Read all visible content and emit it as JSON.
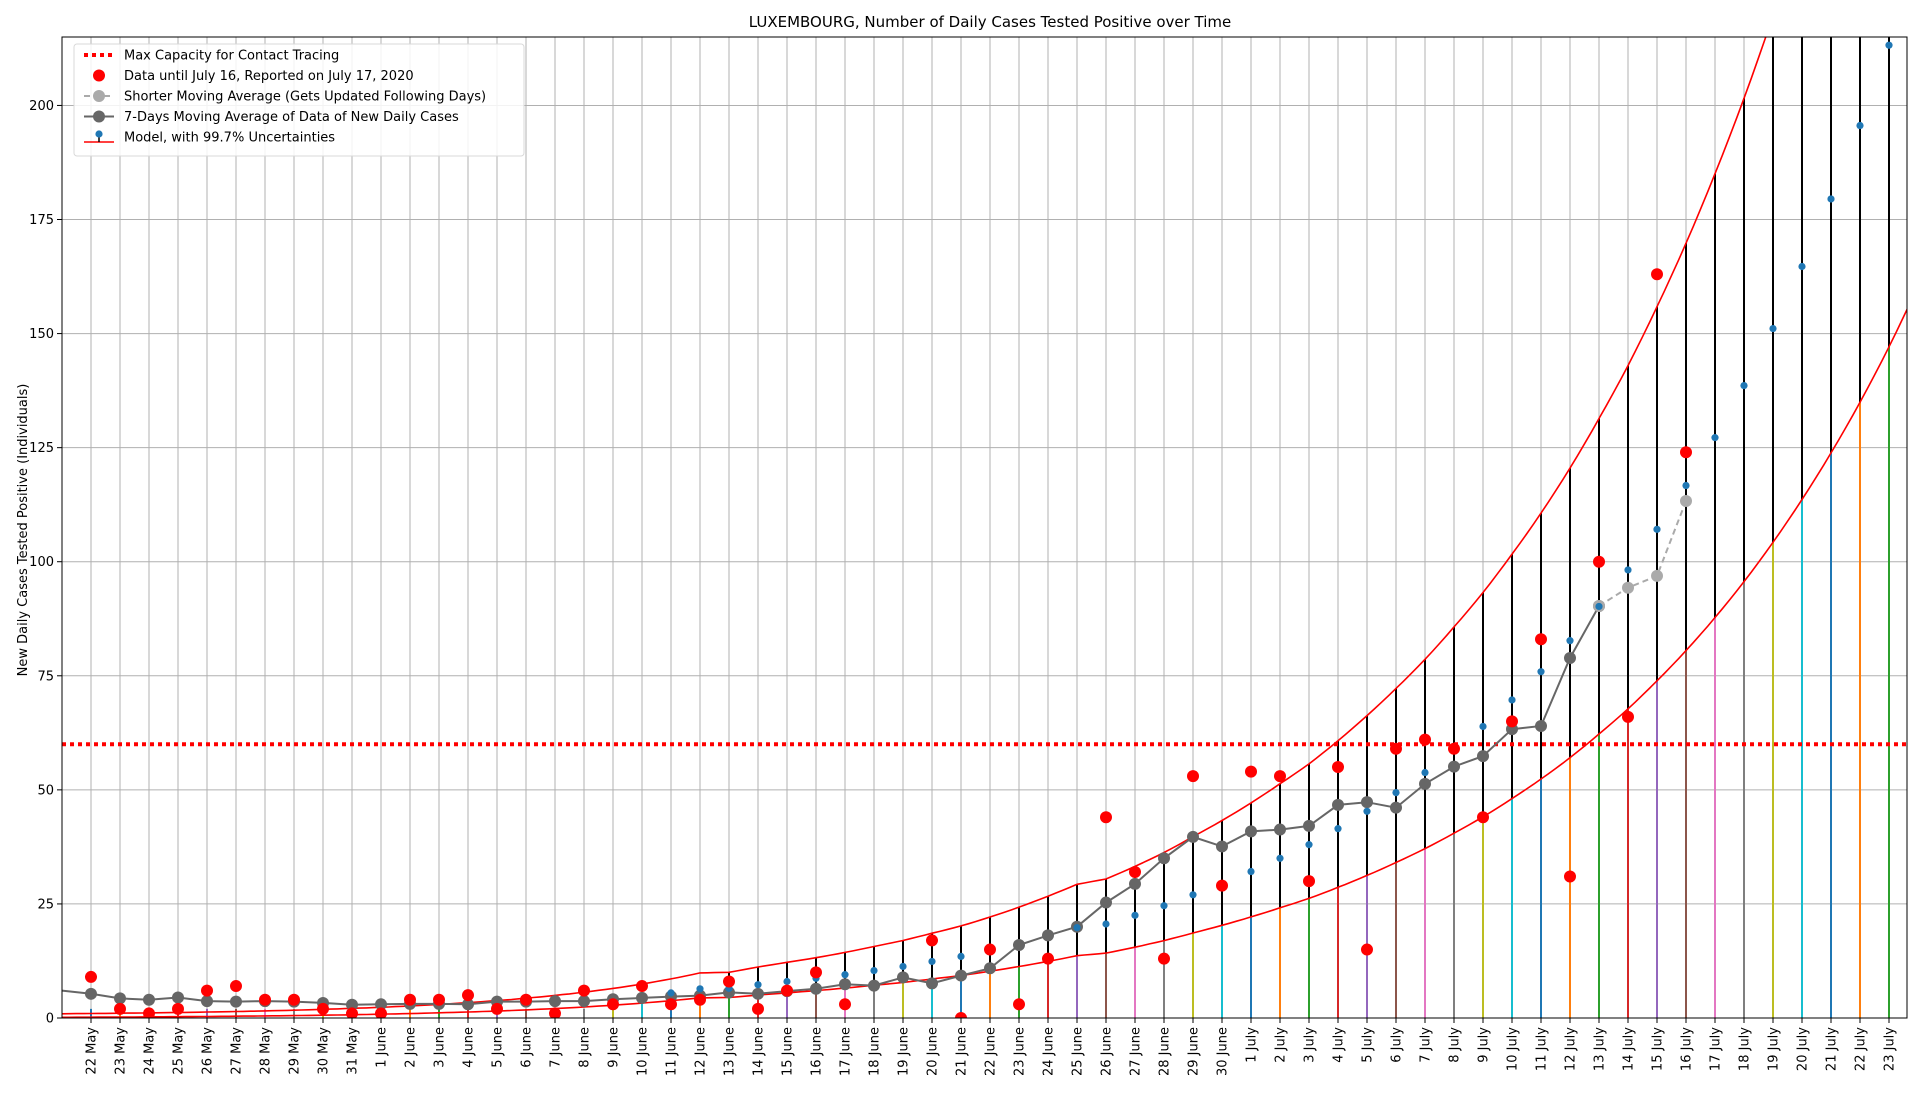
{
  "chart_data": {
    "type": "line",
    "title": "LUXEMBOURG, Number of Daily Cases Tested Positive over Time",
    "xlabel": "",
    "ylabel": "New Daily Cases Tested Positive (Individuals)",
    "ylim": [
      0,
      215
    ],
    "yticks": [
      0,
      25,
      50,
      75,
      100,
      125,
      150,
      175,
      200
    ],
    "grid": true,
    "legend_position": "top-left",
    "categories": [
      "22 May",
      "23 May",
      "24 May",
      "25 May",
      "26 May",
      "27 May",
      "28 May",
      "29 May",
      "30 May",
      "31 May",
      "1 June",
      "2 June",
      "3 June",
      "4 June",
      "5 June",
      "6 June",
      "7 June",
      "8 June",
      "9 June",
      "10 June",
      "11 June",
      "12 June",
      "13 June",
      "14 June",
      "15 June",
      "16 June",
      "17 June",
      "18 June",
      "19 June",
      "20 June",
      "21 June",
      "22 June",
      "23 June",
      "24 June",
      "25 June",
      "26 June",
      "27 June",
      "28 June",
      "29 June",
      "30 June",
      "1 July",
      "2 July",
      "3 July",
      "4 July",
      "5 July",
      "6 July",
      "7 July",
      "8 July",
      "9 July",
      "10 July",
      "11 July",
      "12 July",
      "13 July",
      "14 July",
      "15 July",
      "16 July",
      "17 July",
      "18 July",
      "19 July",
      "20 July",
      "21 July",
      "22 July",
      "23 July"
    ],
    "capacity": {
      "name": "Max Capacity for Contact Tracing",
      "value": 60,
      "color": "#ff0000"
    },
    "series": [
      {
        "name": "Data until July 16, Reported on July 17, 2020",
        "color": "#ff0000",
        "values": [
          9,
          2,
          1,
          2,
          6,
          7,
          4,
          4,
          2,
          1,
          1,
          4,
          4,
          5,
          2,
          4,
          1,
          6,
          3,
          7,
          3,
          4,
          8,
          2,
          6,
          10,
          3,
          null,
          null,
          17,
          0,
          15,
          3,
          13,
          null,
          44,
          32,
          13,
          53,
          29,
          54,
          53,
          30,
          55,
          15,
          59,
          61,
          59,
          44,
          65,
          83,
          31,
          100,
          66,
          163,
          124,
          null,
          null,
          null,
          null,
          null,
          null,
          null
        ]
      },
      {
        "name": "Shorter Moving Average (Gets Updated Following Days)",
        "color": "#aaaaaa",
        "values": [
          null,
          null,
          null,
          null,
          null,
          null,
          null,
          null,
          null,
          null,
          null,
          null,
          null,
          null,
          null,
          null,
          null,
          null,
          null,
          null,
          null,
          null,
          null,
          null,
          null,
          null,
          null,
          null,
          null,
          null,
          null,
          null,
          null,
          null,
          null,
          null,
          null,
          null,
          null,
          null,
          null,
          null,
          null,
          null,
          null,
          null,
          null,
          null,
          null,
          null,
          null,
          null,
          90.3,
          94.3,
          96.9,
          113.3,
          null,
          null,
          null,
          null,
          null,
          null,
          null
        ]
      },
      {
        "name": "7-Days Moving Average of Data of New Daily Cases",
        "color": "#666666",
        "values": [
          5.3,
          4.3,
          4,
          4.5,
          3.7,
          3.6,
          3.7,
          3.6,
          3.3,
          2.9,
          3,
          3.1,
          3.1,
          3,
          3.6,
          3.6,
          3.7,
          3.7,
          4.1,
          4.4,
          4.7,
          4.9,
          5.6,
          5.3,
          5.9,
          6.4,
          7.4,
          7.1,
          8.9,
          7.6,
          9.3,
          10.9,
          16,
          18.1,
          20,
          25.3,
          29.4,
          35,
          39.7,
          37.6,
          40.9,
          41.3,
          42.1,
          46.7,
          47.3,
          46.1,
          51.3,
          55.1,
          57.4,
          63.3,
          64,
          78.9,
          90.3,
          null,
          null,
          null,
          null,
          null,
          null,
          null,
          null,
          null,
          null
        ]
      },
      {
        "name": "Model, with 99.7% Uncertainties",
        "color": "#1f77b4",
        "values": [
          null,
          null,
          null,
          null,
          null,
          null,
          null,
          null,
          null,
          null,
          null,
          null,
          null,
          null,
          null,
          null,
          null,
          null,
          null,
          null,
          5.5,
          6.4,
          6.5,
          7.3,
          8,
          8.7,
          9.5,
          10.4,
          11.3,
          12.4,
          13.5,
          null,
          null,
          null,
          19.8,
          20.6,
          22.5,
          24.6,
          27,
          null,
          32.1,
          35,
          38,
          41.5,
          45.3,
          49.4,
          53.8,
          58.7,
          63.9,
          69.7,
          75.9,
          82.7,
          90.2,
          98.2,
          107.1,
          116.7,
          127.2,
          138.6,
          151.1,
          164.7,
          179.5,
          195.6,
          213.2
        ]
      }
    ]
  }
}
